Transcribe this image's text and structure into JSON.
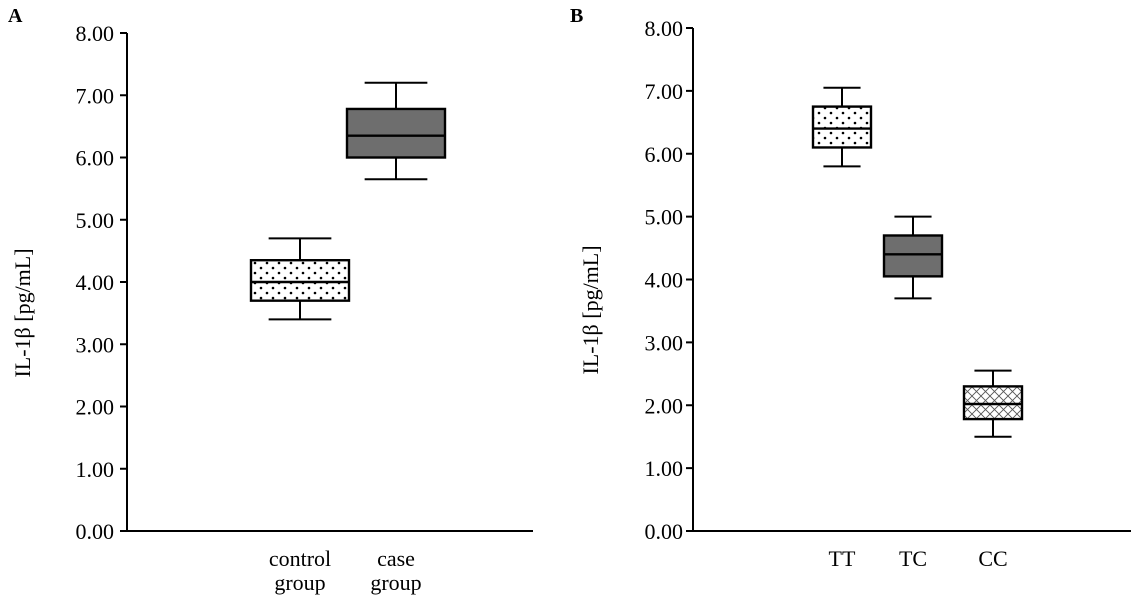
{
  "chart_data": [
    {
      "panel_label": "A",
      "type": "box",
      "ylabel": "IL-1β [pg/mL]",
      "ylim": [
        0,
        8
      ],
      "yticks": [
        "0.00",
        "1.00",
        "2.00",
        "3.00",
        "4.00",
        "5.00",
        "6.00",
        "7.00",
        "8.00"
      ],
      "categories": [
        {
          "label": [
            "control",
            "group"
          ],
          "fill": "dots",
          "min": 3.4,
          "q1": 3.7,
          "median": 4.0,
          "q3": 4.35,
          "max": 4.7
        },
        {
          "label": [
            "case",
            "group"
          ],
          "fill": "dark",
          "min": 5.65,
          "q1": 6.0,
          "median": 6.35,
          "q3": 6.78,
          "max": 7.2
        }
      ]
    },
    {
      "panel_label": "B",
      "type": "box",
      "ylabel": "IL-1β [pg/mL]",
      "ylim": [
        0,
        8
      ],
      "yticks": [
        "0.00",
        "1.00",
        "2.00",
        "3.00",
        "4.00",
        "5.00",
        "6.00",
        "7.00",
        "8.00"
      ],
      "categories": [
        {
          "label": [
            "TT"
          ],
          "fill": "dots",
          "min": 5.8,
          "q1": 6.1,
          "median": 6.4,
          "q3": 6.75,
          "max": 7.05
        },
        {
          "label": [
            "TC"
          ],
          "fill": "dark",
          "min": 3.7,
          "q1": 4.05,
          "median": 4.4,
          "q3": 4.7,
          "max": 5.0
        },
        {
          "label": [
            "CC"
          ],
          "fill": "hatch",
          "min": 1.5,
          "q1": 1.78,
          "median": 2.02,
          "q3": 2.3,
          "max": 2.55
        }
      ]
    }
  ],
  "colors": {
    "axis": "#000000",
    "dark_fill": "#6e6e6e",
    "light_fill": "#ffffff"
  }
}
